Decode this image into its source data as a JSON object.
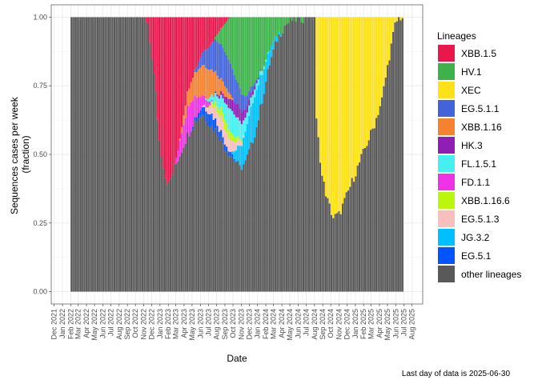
{
  "chart_data": {
    "type": "bar",
    "stacked": true,
    "xlabel": "Date",
    "ylabel_lines": [
      "Sequences cases per week",
      "(fraction)"
    ],
    "ylim": [
      0,
      1
    ],
    "y_ticks": [
      "0.00",
      "0.25",
      "0.50",
      "0.75",
      "1.00"
    ],
    "x_ticks": [
      "Dec 2021",
      "Jan 2022",
      "Feb 2022",
      "Mar 2022",
      "Apr 2022",
      "May 2022",
      "Jun 2022",
      "Jul 2022",
      "Aug 2022",
      "Sep 2022",
      "Oct 2022",
      "Nov 2022",
      "Dec 2022",
      "Jan 2023",
      "Feb 2023",
      "Mar 2023",
      "Apr 2023",
      "May 2023",
      "Jun 2023",
      "Jul 2023",
      "Aug 2023",
      "Sep 2023",
      "Oct 2023",
      "Nov 2023",
      "Dec 2023",
      "Jan 2024",
      "Feb 2024",
      "Mar 2024",
      "Apr 2024",
      "May 2024",
      "Jun 2024",
      "Jul 2024",
      "Aug 2024",
      "Sep 2024",
      "Oct 2024",
      "Nov 2024",
      "Dec 2024",
      "Jan 2025",
      "Feb 2025",
      "Mar 2025",
      "Apr 2025",
      "May 2025",
      "Jun 2025",
      "Jul 2025",
      "Aug 2025"
    ],
    "x_start": "2021-11-20",
    "x_end": "2025-09-10",
    "first_week": "2022-01-31",
    "last_week": "2025-06-23",
    "legend_title": "Lineages",
    "legend_position": "right",
    "grid": true,
    "caption": "Last day of data is 2025-06-30",
    "series": [
      {
        "name": "XBB.1.5",
        "color": "#E8174C"
      },
      {
        "name": "HV.1",
        "color": "#3DB24A"
      },
      {
        "name": "XEC",
        "color": "#FFE119"
      },
      {
        "name": "EG.5.1.1",
        "color": "#4363D8"
      },
      {
        "name": "XBB.1.16",
        "color": "#F58231"
      },
      {
        "name": "HK.3",
        "color": "#911EB4"
      },
      {
        "name": "FL.1.5.1",
        "color": "#46F0F0"
      },
      {
        "name": "FD.1.1",
        "color": "#F032E6"
      },
      {
        "name": "XBB.1.16.6",
        "color": "#BCF60C"
      },
      {
        "name": "EG.5.1.3",
        "color": "#FABEBE"
      },
      {
        "name": "JG.3.2",
        "color": "#00C0FF"
      },
      {
        "name": "EG.5.1",
        "color": "#0055FF"
      },
      {
        "name": "other lineages",
        "color": "#595959"
      }
    ],
    "other_profile": [
      [
        "2022-01-31",
        1.0
      ],
      [
        "2022-03-28",
        0.99
      ],
      [
        "2022-04-04",
        1.0
      ],
      [
        "2022-10-31",
        1.0
      ],
      [
        "2022-11-14",
        0.96
      ],
      [
        "2022-11-28",
        0.86
      ],
      [
        "2022-12-12",
        0.72
      ],
      [
        "2022-12-26",
        0.55
      ],
      [
        "2023-01-16",
        0.42
      ],
      [
        "2023-01-30",
        0.39
      ],
      [
        "2023-02-20",
        0.45
      ],
      [
        "2023-03-13",
        0.5
      ],
      [
        "2023-04-10",
        0.57
      ],
      [
        "2023-05-08",
        0.62
      ],
      [
        "2023-06-05",
        0.65
      ],
      [
        "2023-07-03",
        0.61
      ],
      [
        "2023-08-01",
        0.58
      ],
      [
        "2023-09-01",
        0.52
      ],
      [
        "2023-10-02",
        0.48
      ],
      [
        "2023-10-23",
        0.45
      ],
      [
        "2023-11-13",
        0.47
      ],
      [
        "2023-12-04",
        0.53
      ],
      [
        "2023-12-25",
        0.6
      ],
      [
        "2024-01-15",
        0.7
      ],
      [
        "2024-02-12",
        0.83
      ],
      [
        "2024-03-11",
        0.92
      ],
      [
        "2024-04-08",
        0.97
      ],
      [
        "2024-05-06",
        0.99
      ],
      [
        "2024-07-22",
        1.0
      ],
      [
        "2024-08-05",
        0.62
      ],
      [
        "2024-08-26",
        0.42
      ],
      [
        "2024-09-16",
        0.33
      ],
      [
        "2024-10-07",
        0.27
      ],
      [
        "2024-10-28",
        0.28
      ],
      [
        "2024-11-18",
        0.33
      ],
      [
        "2024-12-16",
        0.4
      ],
      [
        "2025-01-13",
        0.47
      ],
      [
        "2025-02-10",
        0.54
      ],
      [
        "2025-03-10",
        0.61
      ],
      [
        "2025-04-07",
        0.7
      ],
      [
        "2025-05-05",
        0.86
      ],
      [
        "2025-05-26",
        0.97
      ],
      [
        "2025-06-09",
        1.0
      ],
      [
        "2025-06-23",
        1.0
      ]
    ],
    "lineage_windows": [
      {
        "name": "XBB.1.5",
        "start": "2022-11-01",
        "end": "2023-09-15",
        "peak": "2023-02-01",
        "peak_share": 1.0
      },
      {
        "name": "HV.1",
        "start": "2023-07-20",
        "end": "2024-06-20",
        "peak": "2023-11-20",
        "peak_share": 1.0
      },
      {
        "name": "XEC",
        "start": "2024-08-01",
        "end": "2025-07-01",
        "peak": "2024-11-15",
        "peak_share": 1.0
      },
      {
        "name": "EG.5.1.1",
        "start": "2023-05-01",
        "end": "2023-12-31",
        "peak": "2023-08-10",
        "peak_share": 0.45
      },
      {
        "name": "XBB.1.16",
        "start": "2023-03-10",
        "end": "2023-10-01",
        "peak": "2023-06-10",
        "peak_share": 0.4
      },
      {
        "name": "HK.3",
        "start": "2023-07-15",
        "end": "2024-01-15",
        "peak": "2023-10-15",
        "peak_share": 0.15
      },
      {
        "name": "FL.1.5.1",
        "start": "2023-06-15",
        "end": "2024-02-15",
        "peak": "2023-09-20",
        "peak_share": 0.25
      },
      {
        "name": "FD.1.1",
        "start": "2023-02-20",
        "end": "2023-07-15",
        "peak": "2023-04-20",
        "peak_share": 0.3
      },
      {
        "name": "XBB.1.16.6",
        "start": "2023-06-20",
        "end": "2023-11-10",
        "peak": "2023-08-25",
        "peak_share": 0.12
      },
      {
        "name": "EG.5.1.3",
        "start": "2023-06-01",
        "end": "2023-11-15",
        "peak": "2023-08-15",
        "peak_share": 0.2
      },
      {
        "name": "JG.3.2",
        "start": "2023-09-20",
        "end": "2024-04-01",
        "peak": "2023-12-15",
        "peak_share": 0.55
      },
      {
        "name": "EG.5.1",
        "start": "2023-04-20",
        "end": "2023-10-20",
        "peak": "2023-07-01",
        "peak_share": 0.15
      }
    ]
  }
}
